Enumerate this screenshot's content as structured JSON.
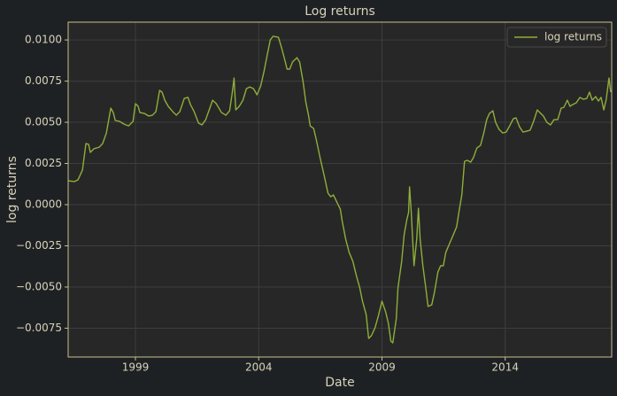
{
  "chart_data": {
    "type": "line",
    "title": "Log returns",
    "x_label": "Date",
    "y_label": "log returns",
    "x": [
      1996.27,
      1996.52,
      1996.67,
      1996.85,
      1996.99,
      1997.1,
      1997.17,
      1997.31,
      1997.53,
      1997.67,
      1997.82,
      1998.0,
      1998.1,
      1998.18,
      1998.36,
      1998.54,
      1998.72,
      1998.9,
      1999.0,
      1999.11,
      1999.18,
      1999.36,
      1999.54,
      1999.69,
      1999.83,
      1999.98,
      2000.08,
      2000.19,
      2000.33,
      2000.51,
      2000.66,
      2000.8,
      2000.98,
      2001.13,
      2001.23,
      2001.38,
      2001.56,
      2001.7,
      2001.85,
      2001.99,
      2002.13,
      2002.28,
      2002.49,
      2002.67,
      2002.82,
      2002.92,
      2003.0,
      2003.07,
      2003.21,
      2003.36,
      2003.5,
      2003.64,
      2003.79,
      2003.93,
      2004.08,
      2004.22,
      2004.36,
      2004.47,
      2004.58,
      2004.8,
      2004.94,
      2005.08,
      2005.15,
      2005.26,
      2005.37,
      2005.55,
      2005.66,
      2005.8,
      2005.91,
      2006.02,
      2006.09,
      2006.23,
      2006.34,
      2006.49,
      2006.67,
      2006.81,
      2006.92,
      2007.03,
      2007.17,
      2007.31,
      2007.39,
      2007.53,
      2007.67,
      2007.82,
      2007.96,
      2008.1,
      2008.21,
      2008.36,
      2008.46,
      2008.57,
      2008.72,
      2008.86,
      2009.0,
      2009.15,
      2009.26,
      2009.36,
      2009.44,
      2009.58,
      2009.65,
      2009.8,
      2009.9,
      2010.01,
      2010.08,
      2010.12,
      2010.19,
      2010.3,
      2010.41,
      2010.48,
      2010.55,
      2010.66,
      2010.77,
      2010.87,
      2011.02,
      2011.13,
      2011.27,
      2011.38,
      2011.49,
      2011.59,
      2011.74,
      2011.88,
      2012.03,
      2012.13,
      2012.24,
      2012.35,
      2012.46,
      2012.6,
      2012.71,
      2012.85,
      2013.0,
      2013.14,
      2013.25,
      2013.36,
      2013.5,
      2013.61,
      2013.75,
      2013.9,
      2014.04,
      2014.18,
      2014.33,
      2014.44,
      2014.58,
      2014.72,
      2014.87,
      2015.01,
      2015.15,
      2015.3,
      2015.41,
      2015.55,
      2015.69,
      2015.84,
      2015.98,
      2016.13,
      2016.27,
      2016.38,
      2016.52,
      2016.63,
      2016.74,
      2016.88,
      2017.03,
      2017.17,
      2017.31,
      2017.42,
      2017.53,
      2017.67,
      2017.78,
      2017.89,
      2018.0,
      2018.1,
      2018.21,
      2018.28
    ],
    "series": [
      {
        "name": "log returns",
        "color": "#8fae3a",
        "values": [
          0.00145,
          0.0014,
          0.00151,
          0.0021,
          0.00371,
          0.00366,
          0.00317,
          0.00339,
          0.00349,
          0.00371,
          0.00435,
          0.00586,
          0.00559,
          0.00511,
          0.00505,
          0.00489,
          0.00478,
          0.00505,
          0.00613,
          0.00597,
          0.00559,
          0.00554,
          0.00538,
          0.00543,
          0.00565,
          0.00694,
          0.00683,
          0.00634,
          0.00597,
          0.00565,
          0.00543,
          0.00565,
          0.00645,
          0.00651,
          0.00608,
          0.00565,
          0.00495,
          0.00484,
          0.00516,
          0.00575,
          0.00634,
          0.00613,
          0.00559,
          0.00543,
          0.0057,
          0.00672,
          0.00769,
          0.00575,
          0.00597,
          0.00634,
          0.00704,
          0.00715,
          0.00704,
          0.00667,
          0.0072,
          0.00812,
          0.00919,
          0.01,
          0.01022,
          0.01016,
          0.00946,
          0.00866,
          0.00823,
          0.00823,
          0.00866,
          0.00892,
          0.00866,
          0.00747,
          0.00624,
          0.00543,
          0.00478,
          0.00462,
          0.00392,
          0.00285,
          0.00167,
          0.0007,
          0.00048,
          0.00059,
          0.00016,
          -0.00027,
          -0.00102,
          -0.0021,
          -0.0029,
          -0.00344,
          -0.0043,
          -0.00505,
          -0.00586,
          -0.00667,
          -0.00812,
          -0.00796,
          -0.00747,
          -0.00672,
          -0.00586,
          -0.00651,
          -0.0072,
          -0.00828,
          -0.00839,
          -0.00694,
          -0.00505,
          -0.00344,
          -0.00183,
          -0.00091,
          -0.00048,
          0.00108,
          -0.00048,
          -0.00371,
          -0.0021,
          -0.00022,
          -0.0021,
          -0.00371,
          -0.00495,
          -0.00618,
          -0.00608,
          -0.00532,
          -0.00409,
          -0.00371,
          -0.00371,
          -0.0029,
          -0.00237,
          -0.00188,
          -0.00134,
          -0.00038,
          0.00059,
          0.00263,
          0.00269,
          0.00258,
          0.00285,
          0.00344,
          0.0036,
          0.00441,
          0.00516,
          0.00554,
          0.0057,
          0.005,
          0.00457,
          0.00435,
          0.00441,
          0.00478,
          0.00522,
          0.00527,
          0.00473,
          0.00441,
          0.00446,
          0.00452,
          0.00505,
          0.00575,
          0.00559,
          0.00538,
          0.005,
          0.00484,
          0.00516,
          0.00516,
          0.00586,
          0.00591,
          0.00634,
          0.00597,
          0.00608,
          0.00618,
          0.00651,
          0.0064,
          0.00645,
          0.00683,
          0.00634,
          0.00656,
          0.00629,
          0.00651,
          0.00575,
          0.0064,
          0.00769,
          0.00683
        ]
      }
    ],
    "xlim": [
      1996.27,
      2018.32
    ],
    "xticks": [
      1999,
      2004,
      2009,
      2014
    ],
    "ylim": [
      -0.00925,
      0.01108
    ],
    "yticks": [
      {
        "value": 0.01,
        "label": "0.0100"
      },
      0.0075,
      {
        "value": 0.005,
        "label": "0.0050"
      },
      0.0025,
      {
        "value": 0,
        "label": "0.0000"
      },
      {
        "value": -0.0025,
        "label": "−0.0025"
      },
      {
        "value": -0.005,
        "label": "−0.0050"
      },
      {
        "value": -0.0075,
        "label": "−0.0075"
      }
    ],
    "grid": true,
    "legend": "upper right"
  }
}
